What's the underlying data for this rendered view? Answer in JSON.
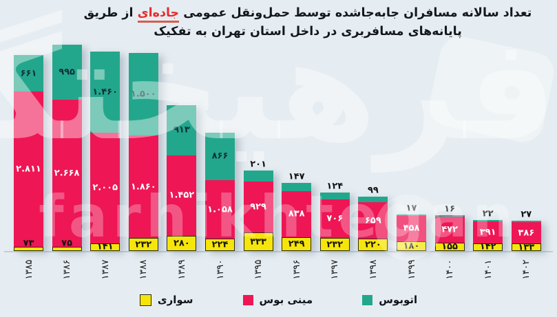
{
  "title": {
    "line1_pre": "تعداد سالانه مسافران جابه‌جاشده توسط حمل‌ونقل عمومی ",
    "line1_highlight": "جاده‌ای",
    "line1_post": " از طریق",
    "line2": "پایانه‌های مسافربری در داخل استان تهران به تفکیک"
  },
  "watermark": {
    "persian": "فرهیختگان",
    "latin": "farhikhtegan"
  },
  "colors": {
    "background": "#e6edf2",
    "car": "#f6e50a",
    "minibus": "#ee1655",
    "bus": "#23a78c",
    "title_highlight": "#e72c2c"
  },
  "legend": [
    {
      "label": "سواری",
      "color": "#f6e50a",
      "swatch_border": "#26260f"
    },
    {
      "label": "مینی بوس",
      "color": "#ee1655",
      "swatch_border": null
    },
    {
      "label": "اتوبوس",
      "color": "#23a78c",
      "swatch_border": null
    }
  ],
  "chart_data": {
    "type": "bar",
    "stacked": true,
    "orientation": "vertical",
    "grid": false,
    "legend_position": "bottom",
    "ylim": [
      0,
      3800
    ],
    "categories": [
      "۱۳۸۵",
      "۱۳۸۶",
      "۱۳۸۷",
      "۱۳۸۸",
      "۱۳۸۹",
      "۱۳۹۰",
      "۱۳۹۵",
      "۱۳۹۶",
      "۱۳۹۷",
      "۱۳۹۸",
      "۱۳۹۹",
      "۱۴۰۰",
      "۱۴۰۱",
      "۱۴۰۲"
    ],
    "series": [
      {
        "name": "سواری",
        "key": "car",
        "color": "#f6e50a",
        "values": [
          73,
          75,
          141,
          232,
          280,
          224,
          333,
          249,
          232,
          220,
          180,
          155,
          142,
          133
        ],
        "labels": [
          "۷۳",
          "۷۵",
          "۱۴۱",
          "۲۳۲",
          "۲۸۰",
          "۲۲۴",
          "۳۳۳",
          "۲۴۹",
          "۲۳۲",
          "۲۲۰",
          "۱۸۰",
          "۱۵۵",
          "۱۴۲",
          "۱۳۳"
        ]
      },
      {
        "name": "مینی بوس",
        "key": "minibus",
        "color": "#ee1655",
        "values": [
          2811,
          2668,
          2005,
          1860,
          1452,
          1058,
          929,
          838,
          706,
          659,
          458,
          472,
          391,
          386
        ],
        "labels": [
          "۲.۸۱۱",
          "۲.۶۶۸",
          "۲.۰۰۵",
          "۱.۸۶۰",
          "۱.۴۵۲",
          "۱.۰۵۸",
          "۹۲۹",
          "۸۳۸",
          "۷۰۶",
          "۶۵۹",
          "۴۵۸",
          "۴۷۲",
          "۳۹۱",
          "۳۸۶"
        ]
      },
      {
        "name": "اتوبوس",
        "key": "bus",
        "color": "#23a78c",
        "values": [
          661,
          995,
          1460,
          1500,
          913,
          866,
          201,
          147,
          124,
          99,
          17,
          16,
          22,
          27
        ],
        "labels": [
          "۶۶۱",
          "۹۹۵",
          "۱.۴۶۰",
          "۱.۵۰۰",
          "۹۱۳",
          "۸۶۶",
          "۲۰۱",
          "۱۴۷",
          "۱۲۴",
          "۹۹",
          "۱۷",
          "۱۶",
          "۲۲",
          "۲۷"
        ]
      }
    ]
  }
}
